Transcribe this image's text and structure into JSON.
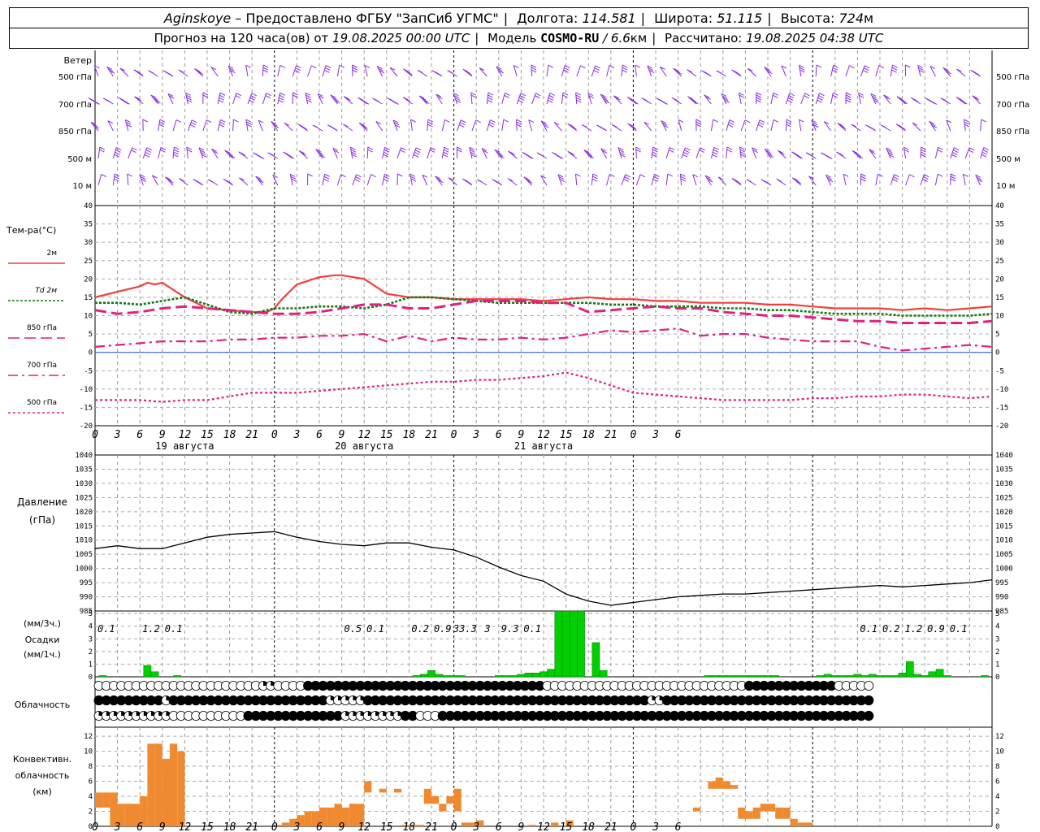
{
  "header": {
    "station": "Aginskoye",
    "dash": "–",
    "provider": "Предоставлено ФГБУ \"ЗапСиб УГМС\"",
    "lon_label": "Долгота:",
    "lon_value": "114.581",
    "lat_label": "Широта:",
    "lat_value": "51.115",
    "alt_label": "Высота:",
    "alt_value": "724",
    "alt_unit": "м",
    "forecast_prefix": "Прогноз на 120 часа(ов) от",
    "forecast_start": "19.08.2025 00:00 UTC",
    "model_label": "Модель",
    "model_name": "COSMO-RU",
    "model_res": "/ 6.6",
    "model_unit": "км",
    "calc_label": "Рассчитано:",
    "calc_time": "19.08.2025 04:38 UTC"
  },
  "labels": {
    "wind_title": "Ветер",
    "wind_levels": [
      "500 гПа",
      "700 гПа",
      "850 гПа",
      "500  м",
      "10   м"
    ],
    "temp_title": "Тем-ра(°С)",
    "temp_legend": [
      "2м",
      "Td  2м",
      "850 гПа",
      "700 гПа",
      "500 гПа"
    ],
    "pressure_title": "Давление",
    "pressure_unit": "(гПа)",
    "precip_unit3": "(мм/3ч.)",
    "precip_title": "Осадки",
    "precip_unit1": "(мм/1ч.)",
    "cloud_title": "Облачность",
    "conv_title1": "Конвективн.",
    "conv_title2": "облачность",
    "conv_unit": "(км)",
    "day_labels": [
      "19 августа",
      "20 августа",
      "21 августа"
    ],
    "hour_ticks": [
      "0",
      "3",
      "6",
      "9",
      "12",
      "15",
      "18",
      "21",
      "0",
      "3",
      "6",
      "9",
      "12",
      "15",
      "18",
      "21",
      "0",
      "3",
      "6",
      "9",
      "12",
      "15",
      "18",
      "21",
      "0",
      "3",
      "6"
    ]
  },
  "colors": {
    "t2m": "#f0403c",
    "td2m": "#117a11",
    "t850": "#e0207e",
    "t700": "#e0207e",
    "t500": "#e0207e",
    "wind": "#8a2be2",
    "precip": "#00d000",
    "conv": "#f08a30",
    "zero_line": "#3050ff"
  },
  "chart_data": [
    {
      "type": "line",
      "title": "Тем-ра(°С)",
      "x_unit": "hours from 19.08.2025 00:00 UTC",
      "ylim": [
        -20,
        40
      ],
      "yticks": [
        -20,
        -15,
        -10,
        -5,
        0,
        5,
        10,
        15,
        20,
        25,
        30,
        35,
        40
      ],
      "series": [
        {
          "name": "2м",
          "x": [
            0,
            3,
            6,
            7,
            8,
            9,
            12,
            15,
            18,
            21,
            23,
            24,
            25,
            27,
            30,
            32,
            33,
            36,
            39,
            42,
            45,
            48,
            51,
            54,
            57,
            60,
            63,
            66,
            69,
            72,
            75,
            78,
            81,
            84,
            87,
            90,
            93,
            96,
            99,
            102,
            105,
            108,
            111,
            114,
            117,
            120
          ],
          "values": [
            15,
            16.5,
            18,
            19,
            18.5,
            19,
            15,
            12,
            11.5,
            11,
            11,
            12,
            14.5,
            18.5,
            20.5,
            21,
            21,
            20,
            16,
            15,
            15,
            14.5,
            14.5,
            14.5,
            14.5,
            14,
            14.5,
            15,
            14.5,
            14.5,
            14,
            14,
            13.5,
            13.5,
            13.5,
            13,
            13,
            12.5,
            12,
            12,
            12,
            11.5,
            12,
            11.5,
            12,
            12.5
          ]
        },
        {
          "name": "Td  2м",
          "x": [
            0,
            3,
            6,
            9,
            12,
            15,
            18,
            21,
            24,
            27,
            30,
            33,
            36,
            39,
            42,
            45,
            48,
            51,
            54,
            57,
            60,
            63,
            66,
            69,
            72,
            75,
            78,
            81,
            84,
            87,
            90,
            93,
            96,
            99,
            102,
            105,
            108,
            111,
            114,
            117,
            120
          ],
          "values": [
            13.5,
            13.5,
            13,
            14,
            15,
            13,
            11,
            10.5,
            12,
            12,
            12.5,
            12.5,
            12,
            13,
            15,
            15,
            14.5,
            14,
            13.5,
            13.5,
            13.5,
            13.5,
            13.5,
            13,
            13,
            12.5,
            12.5,
            12.5,
            12,
            12,
            11.5,
            11.5,
            11,
            10.5,
            10.5,
            10.5,
            10,
            10,
            10,
            10,
            10.5
          ]
        },
        {
          "name": "850 гПа",
          "x": [
            0,
            3,
            6,
            9,
            12,
            15,
            18,
            21,
            24,
            27,
            30,
            33,
            36,
            39,
            42,
            45,
            48,
            51,
            54,
            57,
            60,
            63,
            66,
            69,
            72,
            75,
            78,
            81,
            84,
            87,
            90,
            93,
            96,
            99,
            102,
            105,
            108,
            111,
            114,
            117,
            120
          ],
          "values": [
            11.5,
            10.5,
            11,
            12,
            12.5,
            12,
            11.5,
            11,
            10.5,
            10.5,
            11,
            12,
            13,
            13,
            12,
            12,
            13,
            14,
            14,
            14,
            13.5,
            13.5,
            11,
            11.5,
            12,
            12.5,
            12,
            12,
            11,
            10.5,
            10,
            10,
            9.5,
            9,
            8.5,
            8.5,
            8,
            8,
            8,
            8,
            8.5
          ]
        },
        {
          "name": "700 гПа",
          "x": [
            0,
            3,
            6,
            9,
            12,
            15,
            18,
            21,
            24,
            27,
            30,
            33,
            36,
            39,
            42,
            45,
            48,
            51,
            54,
            57,
            60,
            63,
            66,
            69,
            72,
            75,
            78,
            81,
            84,
            87,
            90,
            93,
            96,
            99,
            102,
            105,
            108,
            111,
            114,
            117,
            120
          ],
          "values": [
            1.5,
            2,
            2.5,
            3,
            3,
            3,
            3.5,
            3.5,
            4,
            4,
            4.5,
            4.5,
            5,
            3,
            4.5,
            3,
            4,
            3.5,
            3.5,
            4,
            3.5,
            4,
            5,
            6,
            5.5,
            6,
            6.5,
            4.5,
            5,
            5,
            4,
            3.5,
            3,
            3,
            3,
            1.5,
            0.5,
            1,
            1.5,
            2,
            1.5
          ]
        },
        {
          "name": "500 гПа",
          "x": [
            0,
            3,
            6,
            9,
            12,
            15,
            18,
            21,
            24,
            27,
            30,
            33,
            36,
            39,
            42,
            45,
            48,
            51,
            54,
            57,
            60,
            63,
            66,
            69,
            72,
            75,
            78,
            81,
            84,
            87,
            90,
            93,
            96,
            99,
            102,
            105,
            108,
            111,
            114,
            117,
            120
          ],
          "values": [
            -13,
            -13,
            -13,
            -13.5,
            -13,
            -13,
            -12,
            -11,
            -11,
            -11,
            -10.5,
            -10,
            -9.5,
            -9,
            -8.5,
            -8,
            -8,
            -7.5,
            -7.5,
            -7,
            -6.5,
            -5.5,
            -7,
            -9,
            -11,
            -11.5,
            -12,
            -12.5,
            -13,
            -13,
            -13,
            -13,
            -12.5,
            -12.5,
            -12,
            -12,
            -11.5,
            -11.5,
            -12,
            -12.5,
            -12
          ]
        }
      ]
    },
    {
      "type": "line",
      "title": "Давление",
      "ylabel": "(гПа)",
      "ylim": [
        985,
        1040
      ],
      "yticks": [
        985,
        990,
        995,
        1000,
        1005,
        1010,
        1015,
        1020,
        1025,
        1030,
        1035,
        1040
      ],
      "series": [
        {
          "name": "",
          "x": [
            0,
            3,
            6,
            9,
            12,
            15,
            18,
            21,
            24,
            27,
            30,
            33,
            36,
            39,
            42,
            45,
            48,
            51,
            54,
            57,
            60,
            63,
            66,
            69,
            72,
            75,
            78,
            81,
            84,
            87,
            90,
            93,
            96,
            99,
            102,
            105,
            108,
            111,
            114,
            117,
            120
          ],
          "values": [
            1007,
            1008,
            1007,
            1007,
            1009,
            1011,
            1012,
            1012.5,
            1013,
            1011,
            1009.5,
            1008.5,
            1008,
            1009,
            1009,
            1007.5,
            1006.5,
            1004,
            1000.5,
            997.5,
            995.5,
            991,
            988.5,
            987,
            988,
            989,
            990,
            990.5,
            991,
            991,
            991.5,
            992,
            992.5,
            993,
            993.5,
            994,
            993.5,
            994,
            994.5,
            995,
            996
          ]
        }
      ]
    },
    {
      "type": "bar",
      "title": "Осадки",
      "ylabel": "(мм/1ч.)",
      "ylim": [
        0,
        5
      ],
      "hourly_x": [
        1,
        7,
        8,
        11,
        43,
        44,
        45,
        46,
        47,
        48,
        49,
        54,
        55,
        56,
        57,
        58,
        59,
        60,
        61,
        62,
        63,
        64,
        65,
        67,
        68,
        82,
        83,
        84,
        85,
        86,
        87,
        88,
        89,
        90,
        91,
        97,
        98,
        99,
        100,
        101,
        102,
        103,
        104,
        105,
        106,
        107,
        108,
        109,
        110,
        111,
        112,
        113,
        114,
        119
      ],
      "hourly_values": [
        0.1,
        0.9,
        0.4,
        0.1,
        0.1,
        0.2,
        0.5,
        0.2,
        0.1,
        0.1,
        0.1,
        0.1,
        0.1,
        0.1,
        0.2,
        0.3,
        0.3,
        0.4,
        0.6,
        5.2,
        5.2,
        5.2,
        5.2,
        2.7,
        0.5,
        0.1,
        0.1,
        0.1,
        0.1,
        0.1,
        0.1,
        0.1,
        0.1,
        0.1,
        0.1,
        0.1,
        0.2,
        0.1,
        0.1,
        0.1,
        0.2,
        0.1,
        0.2,
        0.1,
        0.1,
        0.1,
        0.3,
        1.2,
        0.2,
        0.1,
        0.4,
        0.6,
        0.1,
        0.1
      ],
      "sum3h_labels": [
        {
          "x": 1.5,
          "text": "0.1"
        },
        {
          "x": 7.5,
          "text": "1.2"
        },
        {
          "x": 10.5,
          "text": "0.1"
        },
        {
          "x": 34.5,
          "text": "0.5"
        },
        {
          "x": 37.5,
          "text": "0.1"
        },
        {
          "x": 43.5,
          "text": "0.2"
        },
        {
          "x": 46.5,
          "text": "0.9"
        },
        {
          "x": 49.5,
          "text": "33.3"
        },
        {
          "x": 52.5,
          "text": "3"
        },
        {
          "x": 55.5,
          "text": "9.3"
        },
        {
          "x": 58.5,
          "text": "0.1"
        },
        {
          "x": 103.5,
          "text": "0.1"
        },
        {
          "x": 106.5,
          "text": "0.2"
        },
        {
          "x": 109.5,
          "text": "1.2"
        },
        {
          "x": 112.5,
          "text": "0.9"
        },
        {
          "x": 115.5,
          "text": "0.1"
        }
      ]
    },
    {
      "type": "bar",
      "title": "Конвективн. облачность",
      "ylabel": "(км)",
      "ylim": [
        0,
        13
      ],
      "yticks": [
        0,
        2,
        4,
        6,
        8,
        10,
        12
      ],
      "bars": [
        {
          "x": 0,
          "base": 2.5,
          "top": 4.5
        },
        {
          "x": 1,
          "base": 2.5,
          "top": 4.5
        },
        {
          "x": 2,
          "base": 0,
          "top": 4.5
        },
        {
          "x": 3,
          "base": 0,
          "top": 3
        },
        {
          "x": 4,
          "base": 0,
          "top": 3
        },
        {
          "x": 5,
          "base": 0,
          "top": 3
        },
        {
          "x": 6,
          "base": 0,
          "top": 4
        },
        {
          "x": 7,
          "base": 0,
          "top": 11
        },
        {
          "x": 8,
          "base": 0,
          "top": 11
        },
        {
          "x": 9,
          "base": 0,
          "top": 9
        },
        {
          "x": 10,
          "base": 0,
          "top": 11
        },
        {
          "x": 11,
          "base": 0,
          "top": 10
        },
        {
          "x": 24,
          "base": 0,
          "top": 0.2
        },
        {
          "x": 25,
          "base": 0,
          "top": 0.5
        },
        {
          "x": 26,
          "base": 0,
          "top": 1
        },
        {
          "x": 27,
          "base": 0,
          "top": 1.5
        },
        {
          "x": 28,
          "base": 0,
          "top": 2
        },
        {
          "x": 29,
          "base": 0,
          "top": 2
        },
        {
          "x": 30,
          "base": 0,
          "top": 2.5
        },
        {
          "x": 31,
          "base": 0,
          "top": 2.5
        },
        {
          "x": 32,
          "base": 0,
          "top": 3
        },
        {
          "x": 33,
          "base": 0,
          "top": 2.5
        },
        {
          "x": 34,
          "base": 0,
          "top": 3
        },
        {
          "x": 35,
          "base": 0,
          "top": 3
        },
        {
          "x": 36,
          "base": 4.5,
          "top": 6
        },
        {
          "x": 38,
          "base": 4.5,
          "top": 5
        },
        {
          "x": 40,
          "base": 4.5,
          "top": 5
        },
        {
          "x": 41,
          "base": 0,
          "top": 0.2
        },
        {
          "x": 42,
          "base": 0,
          "top": 0.2
        },
        {
          "x": 43,
          "base": 0,
          "top": 0.2
        },
        {
          "x": 44,
          "base": 3,
          "top": 5
        },
        {
          "x": 45,
          "base": 3,
          "top": 4
        },
        {
          "x": 46,
          "base": 2,
          "top": 3
        },
        {
          "x": 47,
          "base": 3,
          "top": 4
        },
        {
          "x": 48,
          "base": 2,
          "top": 5
        },
        {
          "x": 49,
          "base": 0,
          "top": 0.5
        },
        {
          "x": 50,
          "base": 0,
          "top": 0.5
        },
        {
          "x": 51,
          "base": 0,
          "top": 0.8
        },
        {
          "x": 58,
          "base": 0,
          "top": 0.2
        },
        {
          "x": 61,
          "base": 0,
          "top": 0.5
        },
        {
          "x": 63,
          "base": 0,
          "top": 0.8
        },
        {
          "x": 80,
          "base": 2,
          "top": 2.5
        },
        {
          "x": 82,
          "base": 5,
          "top": 6
        },
        {
          "x": 83,
          "base": 5,
          "top": 6.5
        },
        {
          "x": 84,
          "base": 5,
          "top": 6
        },
        {
          "x": 85,
          "base": 5,
          "top": 5.5
        },
        {
          "x": 86,
          "base": 1,
          "top": 2.5
        },
        {
          "x": 87,
          "base": 1,
          "top": 2
        },
        {
          "x": 88,
          "base": 1,
          "top": 2.5
        },
        {
          "x": 89,
          "base": 2,
          "top": 3
        },
        {
          "x": 90,
          "base": 2,
          "top": 3
        },
        {
          "x": 91,
          "base": 1,
          "top": 2.5
        },
        {
          "x": 92,
          "base": 1,
          "top": 2.5
        },
        {
          "x": 93,
          "base": 0,
          "top": 1
        },
        {
          "x": 94,
          "base": 0,
          "top": 0.5
        },
        {
          "x": 95,
          "base": 0,
          "top": 0.5
        }
      ]
    }
  ],
  "cloud_rows": [
    "OOOOOOOOOOOOOOOOOOOOOOQQOOOOHHHHHHHHHHHHHHHHHHHHHHHHHHHHHHHHOOOOOOOOOOOOOOOOOOOOOOOOOOOHHHHHHHHHHHHOOOOO",
    "HHHHHHHHHQHHHHHHHHHHHHHHHHHHHHHQQQQQHHHHHHHHHHHHHHHHHHHHHHHHHHHHHHHHHHHHHHQQHHHHHHHHHHHHHHHHHHHHHHHHHHHH",
    "QQQQQQQQQQOOOOOOOOOOHHHHHHHHHHHHHQQQQQQQQHHOOOHHHHHHHHHHHHHHHHHHHHHHHHHHHHHHHHHHHHHHHHHHHHHHHHHHHHHHHHHH"
  ]
}
